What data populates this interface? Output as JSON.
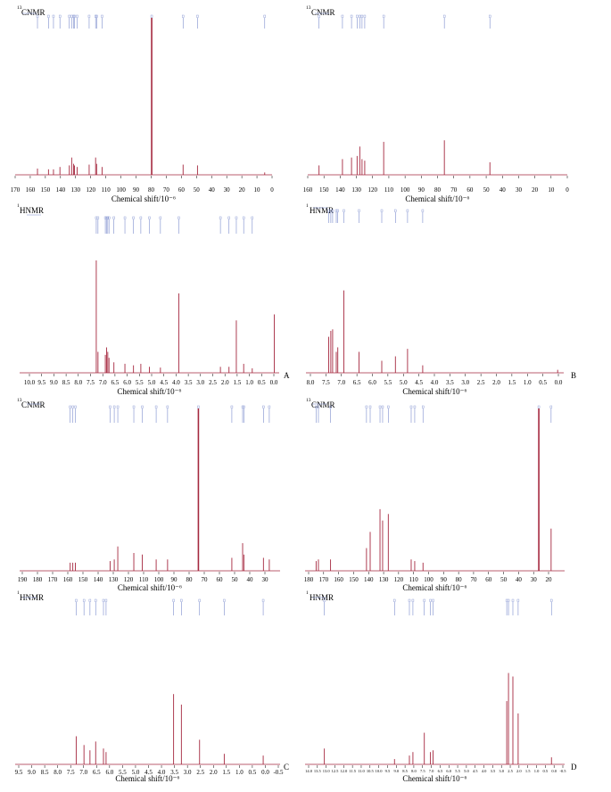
{
  "panels": [
    {
      "id": "A-c13",
      "sup": "13",
      "title": "CNMR",
      "xlabel": "Chemical shift/10⁻⁶",
      "letter": "",
      "ticks": [
        "170",
        "160",
        "150",
        "140",
        "130",
        "120",
        "110",
        "100",
        "90",
        "80",
        "70",
        "60",
        "50",
        "40",
        "30",
        "20",
        "10",
        "0"
      ],
      "chart_data": {
        "type": "line",
        "xlim": [
          170,
          -5
        ],
        "peaks": [
          {
            "x": 154.8,
            "y": 0.04
          },
          {
            "x": 147.3,
            "y": 0.035
          },
          {
            "x": 143.9,
            "y": 0.035
          },
          {
            "x": 139.5,
            "y": 0.05
          },
          {
            "x": 133.1,
            "y": 0.06
          },
          {
            "x": 131.5,
            "y": 0.11
          },
          {
            "x": 130.2,
            "y": 0.07
          },
          {
            "x": 129.6,
            "y": 0.06
          },
          {
            "x": 127.8,
            "y": 0.05
          },
          {
            "x": 119.6,
            "y": 0.065
          },
          {
            "x": 115.2,
            "y": 0.11
          },
          {
            "x": 114.5,
            "y": 0.07
          },
          {
            "x": 110.8,
            "y": 0.05
          },
          {
            "x": 77.0,
            "y": 1.0
          },
          {
            "x": 55.6,
            "y": 0.065
          },
          {
            "x": 45.8,
            "y": 0.06
          },
          {
            "x": 0.0,
            "y": 0.015
          }
        ]
      }
    },
    {
      "id": "B-c13",
      "sup": "13",
      "title": "CNMR",
      "xlabel": "Chemical shift/10⁻⁶",
      "letter": "",
      "ticks": [
        "160",
        "150",
        "140",
        "130",
        "120",
        "110",
        "100",
        "90",
        "80",
        "70",
        "60",
        "50",
        "40",
        "30",
        "20",
        "10",
        "0"
      ],
      "chart_data": {
        "type": "line",
        "xlim": [
          163,
          0
        ],
        "peaks": [
          {
            "x": 155.9,
            "y": 0.06
          },
          {
            "x": 141.2,
            "y": 0.1
          },
          {
            "x": 135.5,
            "y": 0.11
          },
          {
            "x": 132.0,
            "y": 0.12
          },
          {
            "x": 130.3,
            "y": 0.18
          },
          {
            "x": 128.9,
            "y": 0.1
          },
          {
            "x": 127.2,
            "y": 0.09
          },
          {
            "x": 115.3,
            "y": 0.21
          },
          {
            "x": 77.2,
            "y": 0.22
          },
          {
            "x": 48.6,
            "y": 0.08
          }
        ]
      }
    },
    {
      "id": "A-h1",
      "sup": "1",
      "title": "HNMR",
      "xlabel": "Chemical shift/10⁻⁶",
      "letter": "A",
      "ticks": [
        "10.0",
        "9.5",
        "9.0",
        "8.5",
        "8.0",
        "7.5",
        "7.0",
        "6.5",
        "6.0",
        "5.5",
        "5.0",
        "4.5",
        "4.0",
        "3.5",
        "3.0",
        "2.5",
        "2.0",
        "1.5",
        "1.0",
        "0.5",
        "0.0"
      ],
      "chart_data": {
        "type": "line",
        "xlim": [
          10.4,
          -0.2
        ],
        "peaks": [
          {
            "x": 7.27,
            "y": 0.75
          },
          {
            "x": 7.2,
            "y": 0.14
          },
          {
            "x": 6.9,
            "y": 0.12
          },
          {
            "x": 6.85,
            "y": 0.17
          },
          {
            "x": 6.8,
            "y": 0.14
          },
          {
            "x": 6.75,
            "y": 0.1
          },
          {
            "x": 6.55,
            "y": 0.07
          },
          {
            "x": 6.1,
            "y": 0.06
          },
          {
            "x": 5.75,
            "y": 0.05
          },
          {
            "x": 5.45,
            "y": 0.06
          },
          {
            "x": 5.1,
            "y": 0.04
          },
          {
            "x": 4.65,
            "y": 0.035
          },
          {
            "x": 3.9,
            "y": 0.53
          },
          {
            "x": 2.2,
            "y": 0.04
          },
          {
            "x": 1.85,
            "y": 0.04
          },
          {
            "x": 1.55,
            "y": 0.35
          },
          {
            "x": 1.25,
            "y": 0.06
          },
          {
            "x": 0.9,
            "y": 0.03
          },
          {
            "x": 0.0,
            "y": 0.39
          }
        ]
      }
    },
    {
      "id": "B-h1",
      "sup": "1",
      "title": "HNMR",
      "xlabel": "Chemical shift/10⁻⁶",
      "letter": "B",
      "ticks": [
        "8.0",
        "7.5",
        "7.0",
        "6.5",
        "6.0",
        "5.5",
        "5.0",
        "4.5",
        "4.0",
        "3.5",
        "3.0",
        "2.5",
        "2.0",
        "1.5",
        "1.0",
        "0.5",
        "0.0"
      ],
      "chart_data": {
        "type": "line",
        "xlim": [
          8.3,
          -0.2
        ],
        "peaks": [
          {
            "x": 7.55,
            "y": 0.24
          },
          {
            "x": 7.48,
            "y": 0.28
          },
          {
            "x": 7.42,
            "y": 0.29
          },
          {
            "x": 7.3,
            "y": 0.14
          },
          {
            "x": 7.25,
            "y": 0.17
          },
          {
            "x": 7.05,
            "y": 0.55
          },
          {
            "x": 6.55,
            "y": 0.14
          },
          {
            "x": 5.8,
            "y": 0.08
          },
          {
            "x": 5.35,
            "y": 0.11
          },
          {
            "x": 4.95,
            "y": 0.16
          },
          {
            "x": 4.45,
            "y": 0.05
          },
          {
            "x": 0.0,
            "y": 0.02
          }
        ]
      }
    },
    {
      "id": "C-c13",
      "sup": "13",
      "title": "CNMR",
      "xlabel": "Chemical shift/10⁻⁶",
      "letter": "",
      "ticks": [
        "190",
        "180",
        "170",
        "160",
        "150",
        "140",
        "130",
        "120",
        "110",
        "100",
        "90",
        "80",
        "70",
        "60",
        "50",
        "40",
        "30"
      ],
      "chart_data": {
        "type": "line",
        "xlim": [
          193,
          24
        ],
        "peaks": [
          {
            "x": 160.2,
            "y": 0.05
          },
          {
            "x": 158.5,
            "y": 0.05
          },
          {
            "x": 156.8,
            "y": 0.05
          },
          {
            "x": 134.3,
            "y": 0.06
          },
          {
            "x": 131.6,
            "y": 0.07
          },
          {
            "x": 129.3,
            "y": 0.15
          },
          {
            "x": 118.9,
            "y": 0.11
          },
          {
            "x": 113.4,
            "y": 0.1
          },
          {
            "x": 104.4,
            "y": 0.07
          },
          {
            "x": 97.0,
            "y": 0.07
          },
          {
            "x": 77.0,
            "y": 1.0
          },
          {
            "x": 55.3,
            "y": 0.08
          },
          {
            "x": 48.3,
            "y": 0.17
          },
          {
            "x": 47.5,
            "y": 0.1
          },
          {
            "x": 34.8,
            "y": 0.08
          },
          {
            "x": 31.0,
            "y": 0.07
          }
        ]
      }
    },
    {
      "id": "D-c13",
      "sup": "13",
      "title": "CNMR",
      "xlabel": "Chemical shift/10⁻⁶",
      "letter": "",
      "ticks": [
        "180",
        "170",
        "160",
        "150",
        "140",
        "130",
        "120",
        "110",
        "100",
        "90",
        "80",
        "70",
        "60",
        "50",
        "40",
        "30",
        "20"
      ],
      "chart_data": {
        "type": "line",
        "xlim": [
          182,
          13
        ],
        "peaks": [
          {
            "x": 174.8,
            "y": 0.06
          },
          {
            "x": 173.3,
            "y": 0.07
          },
          {
            "x": 165.4,
            "y": 0.07
          },
          {
            "x": 142.0,
            "y": 0.14
          },
          {
            "x": 139.6,
            "y": 0.24
          },
          {
            "x": 133.2,
            "y": 0.38
          },
          {
            "x": 131.5,
            "y": 0.31
          },
          {
            "x": 127.8,
            "y": 0.35
          },
          {
            "x": 112.9,
            "y": 0.07
          },
          {
            "x": 110.6,
            "y": 0.06
          },
          {
            "x": 105.2,
            "y": 0.05
          },
          {
            "x": 29.8,
            "y": 1.0
          },
          {
            "x": 21.8,
            "y": 0.26
          }
        ]
      }
    },
    {
      "id": "C-h1",
      "sup": "1",
      "title": "HNMR",
      "xlabel": "Chemical shift/10⁻⁶",
      "letter": "C",
      "ticks": [
        "9.5",
        "9.0",
        "8.5",
        "8.0",
        "7.5",
        "7.0",
        "6.5",
        "6.0",
        "5.5",
        "5.0",
        "4.5",
        "4.0",
        "3.5",
        "3.0",
        "2.5",
        "2.0",
        "1.5",
        "1.0",
        "0.5",
        "0.0",
        "-0.5"
      ],
      "chart_data": {
        "type": "line",
        "xlim": [
          9.6,
          -0.6
        ],
        "peaks": [
          {
            "x": 7.25,
            "y": 0.16
          },
          {
            "x": 6.95,
            "y": 0.11
          },
          {
            "x": 6.72,
            "y": 0.08
          },
          {
            "x": 6.5,
            "y": 0.13
          },
          {
            "x": 6.2,
            "y": 0.09
          },
          {
            "x": 6.1,
            "y": 0.07
          },
          {
            "x": 3.5,
            "y": 0.4
          },
          {
            "x": 3.2,
            "y": 0.34
          },
          {
            "x": 2.5,
            "y": 0.14
          },
          {
            "x": 1.55,
            "y": 0.06
          },
          {
            "x": 0.05,
            "y": 0.05
          }
        ]
      }
    },
    {
      "id": "D-h1",
      "sup": "1",
      "title": "HNMR",
      "xlabel": "Chemical shift/10⁻⁶",
      "letter": "D",
      "ticks": [
        "14.0",
        "13.5",
        "13.0",
        "12.5",
        "12.0",
        "11.5",
        "11.0",
        "10.5",
        "10.0",
        "9.5",
        "9.0",
        "8.5",
        "8.0",
        "7.5",
        "7.0",
        "6.5",
        "6.0",
        "5.5",
        "5.0",
        "4.5",
        "4.0",
        "3.5",
        "3.0",
        "2.5",
        "2.0",
        "1.5",
        "1.0",
        "0.5",
        "0.0",
        "-0.5"
      ],
      "chart_data": {
        "type": "line",
        "xlim": [
          14.1,
          -0.7
        ],
        "peaks": [
          {
            "x": 13.0,
            "y": 0.09
          },
          {
            "x": 9.0,
            "y": 0.03
          },
          {
            "x": 8.15,
            "y": 0.05
          },
          {
            "x": 7.95,
            "y": 0.07
          },
          {
            "x": 7.3,
            "y": 0.18
          },
          {
            "x": 6.95,
            "y": 0.07
          },
          {
            "x": 6.8,
            "y": 0.08
          },
          {
            "x": 2.6,
            "y": 0.36
          },
          {
            "x": 2.5,
            "y": 0.52
          },
          {
            "x": 2.25,
            "y": 0.5
          },
          {
            "x": 1.95,
            "y": 0.29
          },
          {
            "x": 0.05,
            "y": 0.04
          }
        ]
      }
    }
  ]
}
